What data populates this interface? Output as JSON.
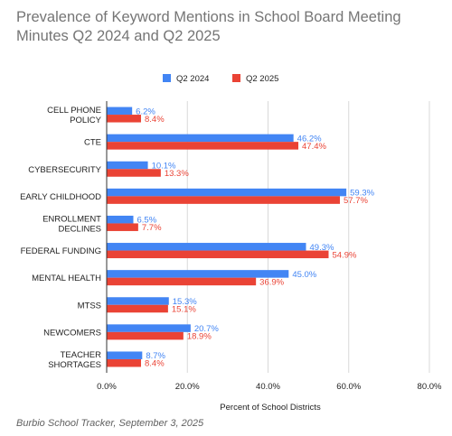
{
  "chart_data": {
    "type": "bar",
    "orientation": "horizontal",
    "title": "Prevalence of Keyword Mentions in School Board Meeting Minutes Q2 2024 and Q2 2025",
    "xlabel": "Percent of School Districts",
    "ylabel": "",
    "xlim": [
      0,
      80
    ],
    "x_ticks": [
      "0.0%",
      "20.0%",
      "40.0%",
      "60.0%",
      "80.0%"
    ],
    "grid": true,
    "legend": "top-center",
    "categories": [
      [
        "CELL PHONE",
        "POLICY"
      ],
      [
        "CTE"
      ],
      [
        "CYBERSECURITY"
      ],
      [
        "EARLY CHILDHOOD"
      ],
      [
        "ENROLLMENT",
        "DECLINES"
      ],
      [
        "FEDERAL FUNDING"
      ],
      [
        "MENTAL HEALTH"
      ],
      [
        "MTSS"
      ],
      [
        "NEWCOMERS"
      ],
      [
        "TEACHER",
        "SHORTAGES"
      ]
    ],
    "series": [
      {
        "name": "Q2 2024",
        "color": "#4285f4",
        "values": [
          6.2,
          46.2,
          10.1,
          59.3,
          6.5,
          49.3,
          45.0,
          15.3,
          20.7,
          8.7
        ],
        "labels": [
          "6.2%",
          "46.2%",
          "10.1%",
          "59.3%",
          "6.5%",
          "49.3%",
          "45.0%",
          "15.3%",
          "20.7%",
          "8.7%"
        ]
      },
      {
        "name": "Q2 2025",
        "color": "#ea4335",
        "values": [
          8.4,
          47.4,
          13.3,
          57.7,
          7.7,
          54.9,
          36.9,
          15.1,
          18.9,
          8.4
        ],
        "labels": [
          "8.4%",
          "47.4%",
          "13.3%",
          "57.7%",
          "7.7%",
          "54.9%",
          "36.9%",
          "15.1%",
          "18.9%",
          "8.4%"
        ]
      }
    ]
  },
  "source": "Burbio School Tracker, September 3, 2025"
}
